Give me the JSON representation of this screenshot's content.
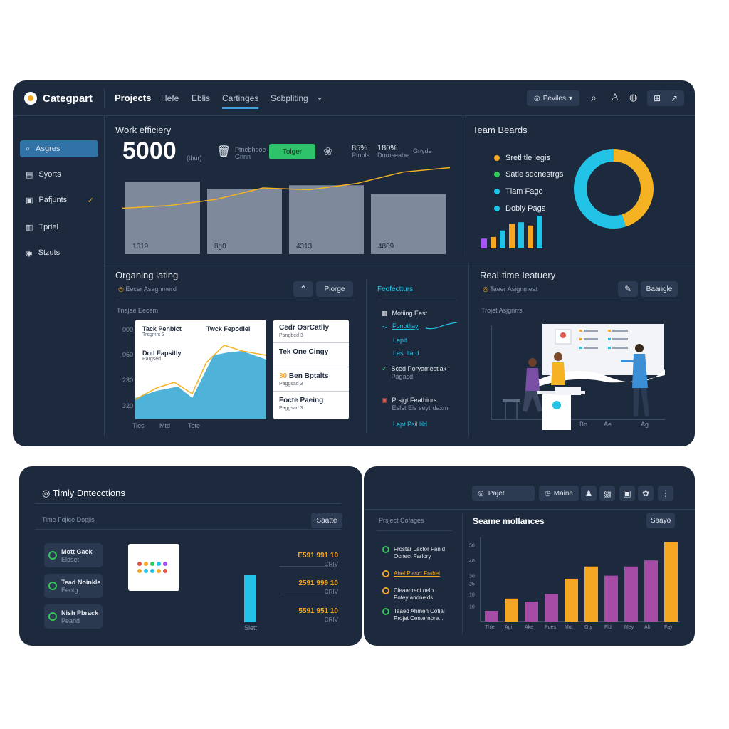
{
  "header": {
    "brand": "Categpart",
    "tabs": [
      "Projects",
      "Hefe",
      "Eblis",
      "Cartinges",
      "Sobpliting"
    ],
    "profile_label": "Peviles"
  },
  "sidebar": {
    "items": [
      {
        "label": "Asgres",
        "icon": "search-icon"
      },
      {
        "label": "Syorts",
        "icon": "chart-icon"
      },
      {
        "label": "Pafjunts",
        "icon": "folder-icon"
      },
      {
        "label": "Tprlel",
        "icon": "document-icon"
      },
      {
        "label": "Stzuts",
        "icon": "status-icon"
      }
    ]
  },
  "work": {
    "title": "Work efficiery",
    "big_value": "5000",
    "unit": "(thur)",
    "stat1": {
      "label": "Ptnebhdoe",
      "sub": "Gnnn"
    },
    "toggle_label": "Tolger",
    "stat2": {
      "value": "85%",
      "sub": "Ptnbls"
    },
    "stat3": {
      "value": "180%",
      "sub": "Doroseabe"
    },
    "stat4": {
      "label": "Gnyde"
    },
    "bars": [
      {
        "label": "1019",
        "value": 0.82
      },
      {
        "label": "8g0",
        "value": 0.74
      },
      {
        "label": "4313",
        "value": 0.78
      },
      {
        "label": "4809",
        "value": 0.68
      }
    ],
    "line": [
      0.52,
      0.55,
      0.62,
      0.75,
      0.73,
      0.8,
      0.93,
      0.98
    ]
  },
  "team": {
    "title": "Team Beards",
    "legend": [
      {
        "label": "Sretl tle legis",
        "color": "#f5a623"
      },
      {
        "label": "Satle sdcnestrgs",
        "color": "#34c759"
      },
      {
        "label": "Tlam Fago",
        "color": "#22c3e6"
      },
      {
        "label": "Dobly Pags",
        "color": "#22c3e6"
      }
    ],
    "donut": [
      {
        "value": 0.45,
        "color": "#f5b323"
      },
      {
        "value": 0.55,
        "color": "#22c3e6"
      }
    ],
    "mini_bars": [
      {
        "value": 0.3,
        "color": "#a855f7"
      },
      {
        "value": 0.35,
        "color": "#f5a623"
      },
      {
        "value": 0.55,
        "color": "#22c3e6"
      },
      {
        "value": 0.75,
        "color": "#f5a623"
      },
      {
        "value": 0.8,
        "color": "#22c3e6"
      },
      {
        "value": 0.7,
        "color": "#f5a623"
      },
      {
        "value": 1.0,
        "color": "#22c3e6"
      }
    ]
  },
  "organizing": {
    "title": "Organing lating",
    "subtitle": "Eecer Asagnmerd",
    "btn_label": "Plorge",
    "chart_title": "Tnajae Eecem",
    "y_ticks": [
      "000",
      "060",
      "230",
      "320"
    ],
    "x_ticks": [
      "Ties",
      "Mtd",
      "Tete"
    ],
    "tasks_left": [
      {
        "title": "Tack Penbict",
        "sub": "Trsgmrs 3"
      },
      {
        "title": "Dotl Eapsitly",
        "sub": "Pargsed"
      }
    ],
    "task_right_header": "Twck Fepodiel",
    "tasks_right": [
      {
        "title": "Cedr OsrCatily",
        "sub": "Pangbed 3"
      },
      {
        "title": "Tek One Cingy",
        "sub": ""
      },
      {
        "title": "Ben Bptalts",
        "prefix": "30",
        "sub": "Paggsad 3"
      },
      {
        "title": "Focte Paeing",
        "sub": "Paggsad 3"
      }
    ]
  },
  "projects_col": {
    "title": "Feofectturs",
    "items": [
      {
        "label": "Motiing Eest",
        "sub": ""
      },
      {
        "label": "Fonotliay",
        "sub": ""
      },
      {
        "label": "Lepit",
        "sub": ""
      },
      {
        "label": "Lesi ltard",
        "sub": ""
      },
      {
        "label": "Sced Poryamestlak",
        "sub": "Pagasd"
      },
      {
        "label": "Prsjgt Feathiors",
        "sub": "Esfst Eis seytrdaxm"
      },
      {
        "label": "Lept Psil lild",
        "sub": ""
      }
    ]
  },
  "realtime": {
    "title": "Real-time Ieatuery",
    "subtitle": "Taeer Asignmeat",
    "btn_label": "Baangle",
    "chart_title": "Trojet Asjgnrrs",
    "x_ticks": [
      "Bo",
      "Ae",
      "Ag"
    ]
  },
  "timely": {
    "title": "Timly Dntecctions",
    "subtitle": "Time Fojice Dopjis",
    "btn_label": "Saatte",
    "cards": [
      {
        "title": "Mott Gack",
        "sub": "Eldset"
      },
      {
        "title": "Tead Noinkle",
        "sub": "Eeotg"
      },
      {
        "title": "Nish Pbrack",
        "sub": "Pearid"
      }
    ],
    "rows": [
      {
        "value": "E591 991 10",
        "sub": "CRIV"
      },
      {
        "value": "2591 999 10",
        "sub": "CRIV"
      },
      {
        "value": "5591 951 10",
        "sub": "CRIV"
      }
    ],
    "bar_label": "Slett",
    "bar_value": 0.85
  },
  "seame": {
    "project_pill": "Pajet",
    "maine_pill": "Maine",
    "title": "Seame mollances",
    "btn_label": "Saayo",
    "col_title": "Prsject Cofages",
    "col_items": [
      {
        "line1": "Frostar Lactor Fanid",
        "line2": "Ocnect Farlory",
        "highlight": false
      },
      {
        "line1": "Abel Plasct Frahel",
        "line2": "",
        "highlight": true
      },
      {
        "line1": "Cleaanrect nelo",
        "line2": "Potey andnelds",
        "highlight": false
      },
      {
        "line1": "Taaed Ahmen Cotial",
        "line2": "Projet Centernpre...",
        "highlight": false
      }
    ]
  },
  "chart_data": {
    "type": "bar",
    "categories": [
      "Thle",
      "Agi",
      "Ake",
      "Poes",
      "Mut",
      "Gty",
      "Fld",
      "Mey",
      "Alt",
      "Fay"
    ],
    "y_ticks": [
      10,
      18,
      25,
      30,
      40,
      50
    ],
    "values": [
      7,
      15,
      13,
      18,
      28,
      36,
      30,
      36,
      40,
      52
    ],
    "colors": [
      "#a64ca6",
      "#f5a623",
      "#a64ca6",
      "#a64ca6",
      "#f5a623",
      "#f5a623",
      "#a64ca6",
      "#a64ca6",
      "#a64ca6",
      "#f5a623"
    ],
    "ylim": [
      0,
      55
    ]
  }
}
